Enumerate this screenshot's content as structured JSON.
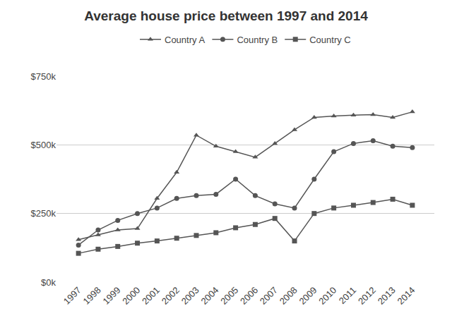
{
  "chart_data": {
    "type": "line",
    "title": "Average house price between 1997 and 2014",
    "categories": [
      "1997",
      "1998",
      "1999",
      "2000",
      "2001",
      "2002",
      "2003",
      "2004",
      "2005",
      "2006",
      "2007",
      "2008",
      "2009",
      "2010",
      "2011",
      "2012",
      "2013",
      "2014"
    ],
    "series": [
      {
        "name": "Country A",
        "color": "#555555",
        "marker": "triangle-up",
        "values": [
          155,
          172,
          190,
          195,
          305,
          400,
          535,
          495,
          475,
          455,
          505,
          555,
          600,
          605,
          608,
          610,
          600,
          620
        ]
      },
      {
        "name": "Country B",
        "color": "#555555",
        "marker": "circle",
        "values": [
          135,
          190,
          225,
          250,
          270,
          305,
          315,
          320,
          375,
          315,
          285,
          270,
          375,
          475,
          505,
          515,
          495,
          490
        ]
      },
      {
        "name": "Country C",
        "color": "#555555",
        "marker": "square",
        "values": [
          105,
          120,
          130,
          142,
          150,
          160,
          170,
          180,
          198,
          210,
          232,
          150,
          250,
          270,
          280,
          290,
          302,
          280
        ]
      }
    ],
    "ylim": [
      0,
      750
    ],
    "yticks": [
      {
        "value": 0,
        "label": "$0k"
      },
      {
        "value": 250,
        "label": "$250k"
      },
      {
        "value": 500,
        "label": "$500k"
      },
      {
        "value": 750,
        "label": "$750k"
      }
    ],
    "grid": true,
    "legend": "top"
  }
}
